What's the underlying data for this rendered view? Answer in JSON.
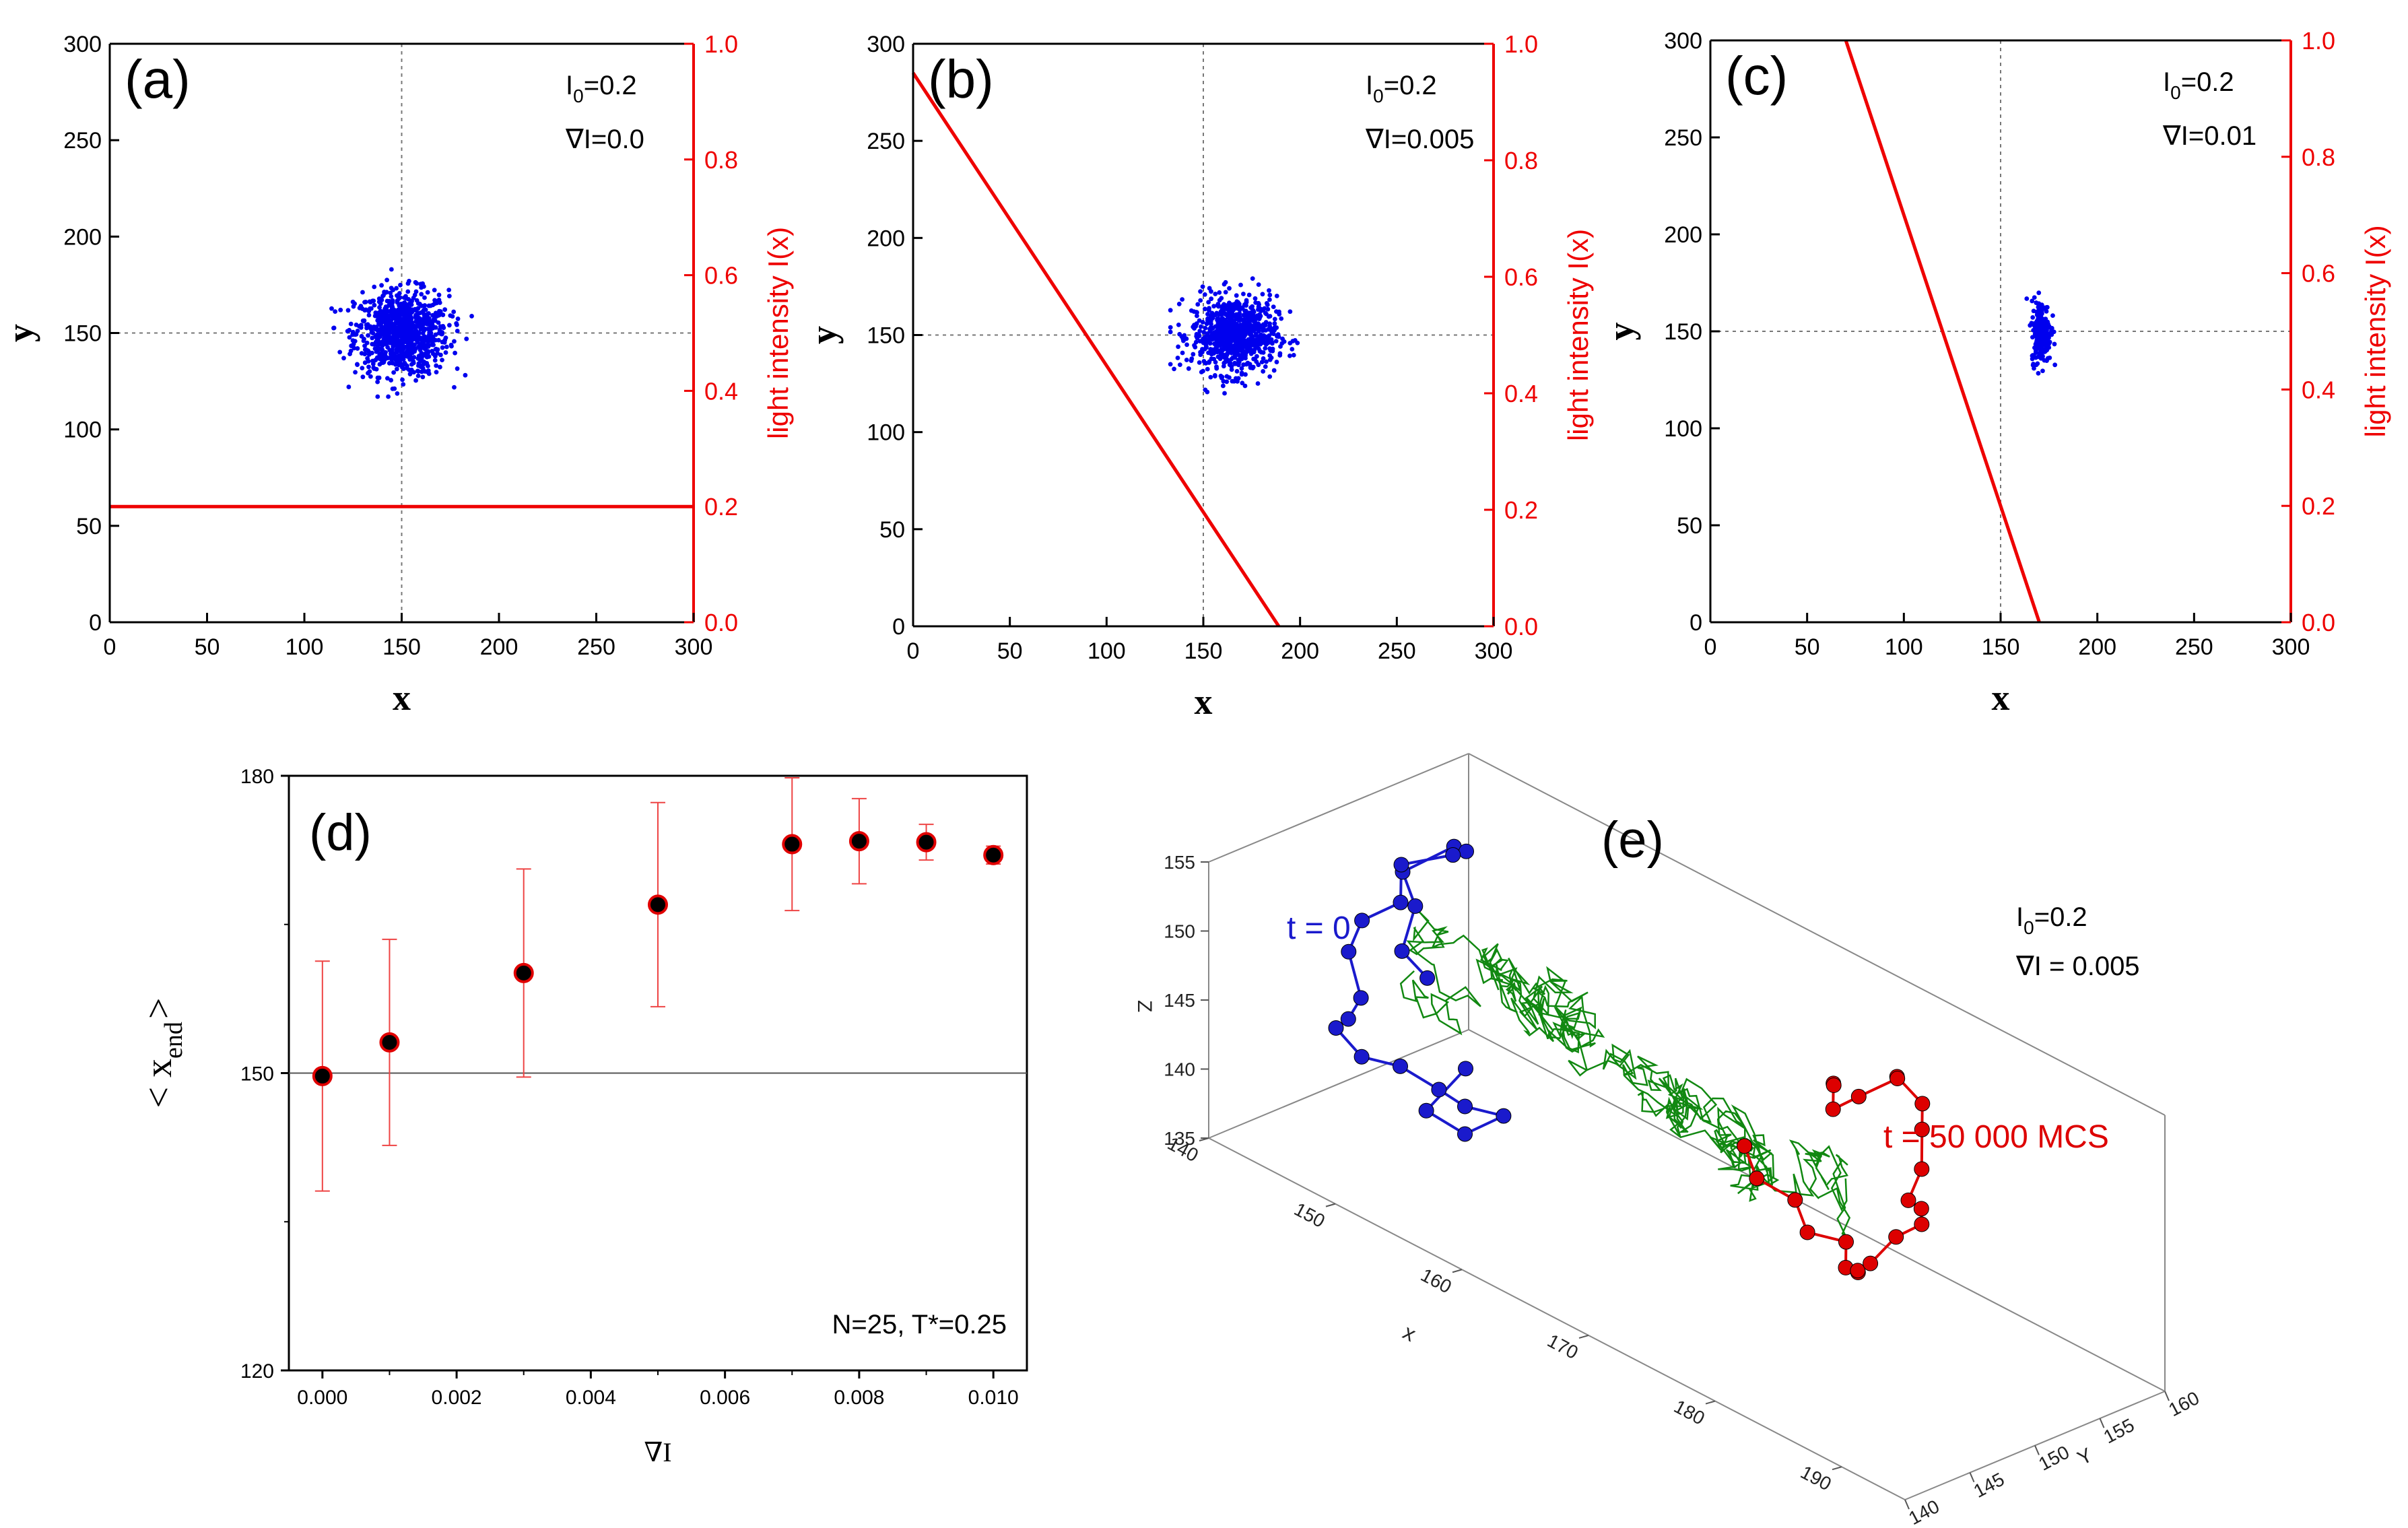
{
  "chart_data": [
    {
      "id": "a",
      "type": "scatter",
      "panel_label": "(a)",
      "xlabel": "x",
      "ylabel": "y",
      "y2label": "light intensity I(x)",
      "xlim": [
        0,
        300
      ],
      "ylim": [
        0,
        300
      ],
      "y2lim": [
        0.0,
        1.0
      ],
      "xticks": [
        "0",
        "50",
        "100",
        "150",
        "200",
        "250",
        "300"
      ],
      "yticks": [
        "0",
        "50",
        "100",
        "150",
        "200",
        "250",
        "300"
      ],
      "y2ticks": [
        "0.0",
        "0.2",
        "0.4",
        "0.6",
        "0.8",
        "1.0"
      ],
      "params": {
        "I0_prefix": "I",
        "I0_sub": "0",
        "I0_value": "=0.2",
        "gradient": "∇I=0.0"
      },
      "reference_lines": {
        "x": 150,
        "y": 150
      },
      "cluster": {
        "center_x": 150,
        "center_y": 150,
        "spread_x": 12,
        "spread_y": 11,
        "count": 900,
        "color": "#0000ee"
      },
      "intensity_line": {
        "x": [
          0,
          300
        ],
        "intensity": [
          0.2,
          0.2
        ],
        "color": "#ee0000"
      }
    },
    {
      "id": "b",
      "type": "scatter",
      "panel_label": "(b)",
      "xlabel": "x",
      "ylabel": "y",
      "y2label": "light intensity I(x)",
      "xlim": [
        0,
        300
      ],
      "ylim": [
        0,
        300
      ],
      "y2lim": [
        0.0,
        1.0
      ],
      "xticks": [
        "0",
        "50",
        "100",
        "150",
        "200",
        "250",
        "300"
      ],
      "yticks": [
        "0",
        "50",
        "100",
        "150",
        "200",
        "250",
        "300"
      ],
      "y2ticks": [
        "0.0",
        "0.2",
        "0.4",
        "0.6",
        "0.8",
        "1.0"
      ],
      "params": {
        "I0_prefix": "I",
        "I0_sub": "0",
        "I0_value": "=0.2",
        "gradient": "∇I=0.005"
      },
      "reference_lines": {
        "x": 150,
        "y": 150
      },
      "cluster": {
        "center_x": 166,
        "center_y": 150,
        "spread_x": 11,
        "spread_y": 10,
        "count": 800,
        "color": "#0000ee"
      },
      "intensity_line": {
        "x": [
          0,
          189
        ],
        "intensity": [
          0.95,
          0.0
        ],
        "color": "#ee0000"
      }
    },
    {
      "id": "c",
      "type": "scatter",
      "panel_label": "(c)",
      "xlabel": "x",
      "ylabel": "y",
      "y2label": "light intensity I(x)",
      "xlim": [
        0,
        300
      ],
      "ylim": [
        0,
        300
      ],
      "y2lim": [
        0.0,
        1.0
      ],
      "xticks": [
        "0",
        "50",
        "100",
        "150",
        "200",
        "250",
        "300"
      ],
      "yticks": [
        "0",
        "50",
        "100",
        "150",
        "200",
        "250",
        "300"
      ],
      "y2ticks": [
        "0.0",
        "0.2",
        "0.4",
        "0.6",
        "0.8",
        "1.0"
      ],
      "params": {
        "I0_prefix": "I",
        "I0_sub": "0",
        "I0_value": "=0.2",
        "gradient": "∇I=0.01"
      },
      "reference_lines": {
        "x": 150,
        "y": 150
      },
      "cluster": {
        "center_x": 171,
        "center_y": 150,
        "spread_x": 2.5,
        "spread_y": 8,
        "count": 260,
        "color": "#0000ee"
      },
      "intensity_line": {
        "x": [
          70,
          170
        ],
        "intensity": [
          1.0,
          0.0
        ],
        "color": "#ee0000"
      }
    },
    {
      "id": "d",
      "type": "scatter",
      "panel_label": "(d)",
      "xlabel": "∇I",
      "ylabel_main": "< x",
      "ylabel_sub": "end",
      "ylabel_close": ">",
      "xlim": [
        -0.0005,
        0.0105
      ],
      "ylim": [
        120,
        180
      ],
      "xticks": [
        "0.000",
        "0.002",
        "0.004",
        "0.006",
        "0.008",
        "0.010"
      ],
      "yticks": [
        "120",
        "150",
        "180"
      ],
      "annotation": "N=25, T*=0.25",
      "reference_y": 150,
      "x": [
        0.0,
        0.001,
        0.003,
        0.005,
        0.007,
        0.008,
        0.009,
        0.01
      ],
      "y": [
        149.7,
        153.1,
        160.1,
        167.0,
        173.1,
        173.4,
        173.3,
        172.0
      ],
      "error": [
        11.6,
        10.4,
        10.5,
        10.3,
        6.7,
        4.3,
        1.8,
        0.9
      ],
      "marker_color": "#000000",
      "marker_edge": "#e00000",
      "error_color": "#ee4444"
    },
    {
      "id": "e",
      "type": "line3d",
      "panel_label": "(e)",
      "label_t0": "t = 0",
      "label_tend": "t = 50 000 MCS",
      "params": {
        "I0_prefix": "I",
        "I0_sub": "0",
        "I0_value": "=0.2",
        "gradient": "∇I = 0.005"
      },
      "axes": {
        "x_label": "x",
        "y_label": "Y",
        "z_label": "Z",
        "xticks": [
          "140",
          "150",
          "160",
          "170",
          "180",
          "190"
        ],
        "yticks": [
          "140",
          "145",
          "150",
          "155",
          "160"
        ],
        "zticks": [
          "135",
          "140",
          "145",
          "150",
          "155"
        ]
      },
      "chain_t0": {
        "color": "#1a1acc",
        "points": [
          [
            147,
            150,
            146
          ],
          [
            145,
            150,
            147
          ],
          [
            144,
            152,
            149
          ],
          [
            143,
            152,
            151
          ],
          [
            145,
            154,
            153
          ],
          [
            147,
            153,
            154
          ],
          [
            148,
            151,
            155
          ],
          [
            147,
            148,
            155
          ],
          [
            149,
            146,
            154
          ],
          [
            148,
            144,
            153
          ],
          [
            149,
            142,
            152
          ],
          [
            151,
            141,
            150
          ],
          [
            150,
            141,
            148
          ],
          [
            148,
            142,
            146
          ],
          [
            149,
            143,
            144
          ],
          [
            150,
            145,
            143
          ],
          [
            151,
            147,
            141
          ],
          [
            151,
            149,
            139
          ],
          [
            152,
            151,
            138
          ],
          [
            151,
            149,
            137
          ],
          [
            150,
            147,
            139
          ],
          [
            149,
            151,
            140
          ]
        ]
      },
      "chain_end": {
        "color": "#dd0000",
        "points": [
          [
            170,
            152,
            144
          ],
          [
            172,
            151,
            143
          ],
          [
            174,
            152,
            142
          ],
          [
            176,
            151,
            141
          ],
          [
            177,
            153,
            140
          ],
          [
            178,
            152,
            139
          ],
          [
            180,
            151,
            140
          ],
          [
            181,
            150,
            141
          ],
          [
            182,
            150,
            142
          ],
          [
            183,
            151,
            144
          ],
          [
            184,
            152,
            145
          ],
          [
            185,
            151,
            147
          ],
          [
            185,
            150,
            148
          ],
          [
            184,
            152,
            149
          ],
          [
            183,
            153,
            151
          ],
          [
            182,
            154,
            152
          ],
          [
            180,
            154,
            153
          ],
          [
            179,
            155,
            152
          ],
          [
            178,
            153,
            151
          ],
          [
            177,
            152,
            150
          ],
          [
            176,
            153,
            151
          ],
          [
            175,
            154,
            150
          ]
        ]
      },
      "trajectory_color": "#118811"
    }
  ]
}
